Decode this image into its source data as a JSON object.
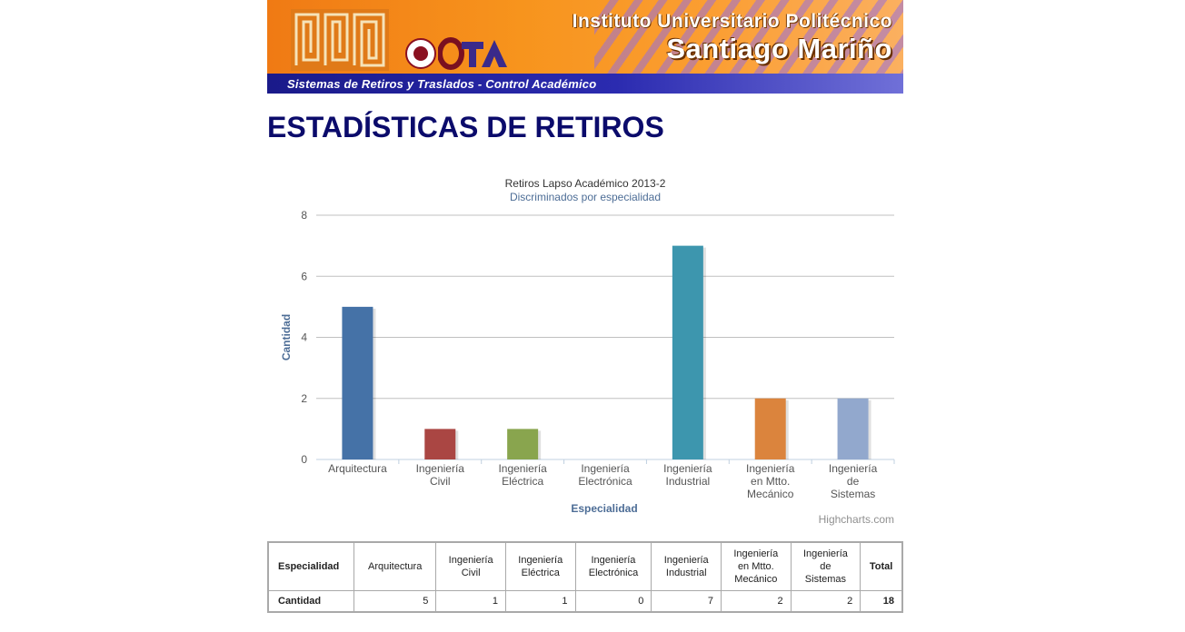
{
  "banner": {
    "institution_line1": "Instituto Universitario Politécnico",
    "institution_line2": "Santiago Mariño",
    "tagline": "Sistemas de Retiros y Traslados - Control Académico",
    "logos": [
      "maze-logo",
      "seal-logo",
      "ota-logo"
    ]
  },
  "page": {
    "title": "ESTADÍSTICAS DE RETIROS"
  },
  "chart_data": {
    "type": "bar",
    "title": "Retiros Lapso Académico 2013-2",
    "subtitle": "Discriminados por especialidad",
    "xlabel": "Especialidad",
    "ylabel": "Cantidad",
    "ylim": [
      0,
      8
    ],
    "yticks": [
      0,
      2,
      4,
      6,
      8
    ],
    "grid": true,
    "credits": "Highcharts.com",
    "categories": [
      [
        "Arquitectura"
      ],
      [
        "Ingeniería",
        "Civil"
      ],
      [
        "Ingeniería",
        "Eléctrica"
      ],
      [
        "Ingeniería",
        "Electrónica"
      ],
      [
        "Ingeniería",
        "Industrial"
      ],
      [
        "Ingeniería",
        "en Mtto.",
        "Mecánico"
      ],
      [
        "Ingeniería",
        "de",
        "Sistemas"
      ]
    ],
    "values": [
      5,
      1,
      1,
      0,
      7,
      2,
      2
    ],
    "colors": [
      "#4572a7",
      "#aa4643",
      "#89a54e",
      "#80699b",
      "#3d96ae",
      "#db843d",
      "#92a8cd"
    ]
  },
  "table": {
    "header_first": "Especialidad",
    "header_total": "Total",
    "columns": [
      [
        "Arquitectura"
      ],
      [
        "Ingeniería",
        "Civil"
      ],
      [
        "Ingeniería",
        "Eléctrica"
      ],
      [
        "Ingeniería",
        "Electrónica"
      ],
      [
        "Ingeniería",
        "Industrial"
      ],
      [
        "Ingeniería",
        "en Mtto.",
        "Mecánico"
      ],
      [
        "Ingeniería",
        "de",
        "Sistemas"
      ]
    ],
    "row_label": "Cantidad",
    "values": [
      "5",
      "1",
      "1",
      "0",
      "7",
      "2",
      "2"
    ],
    "total": "18"
  }
}
